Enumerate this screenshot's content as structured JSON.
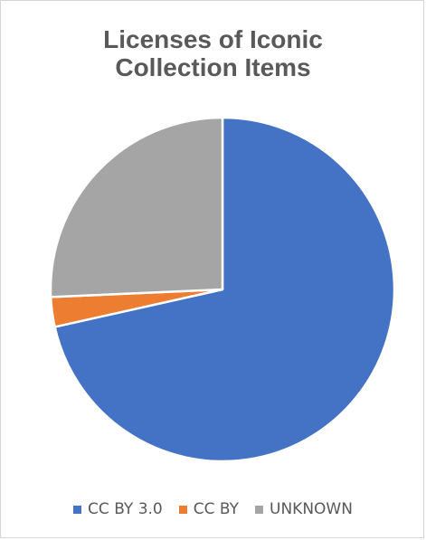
{
  "chart_data": {
    "type": "pie",
    "title_lines": [
      "Licenses of Iconic",
      "Collection Items"
    ],
    "categories": [
      "CC BY 3.0",
      "CC BY",
      "UNKNOWN"
    ],
    "values": [
      71.5,
      2.8,
      25.7
    ],
    "unit": "percent (estimated from slice angles)",
    "colors": [
      "#4472C4",
      "#ED7D31",
      "#A5A5A5"
    ],
    "start_angle": "12 o'clock, clockwise",
    "legend_position": "bottom"
  }
}
